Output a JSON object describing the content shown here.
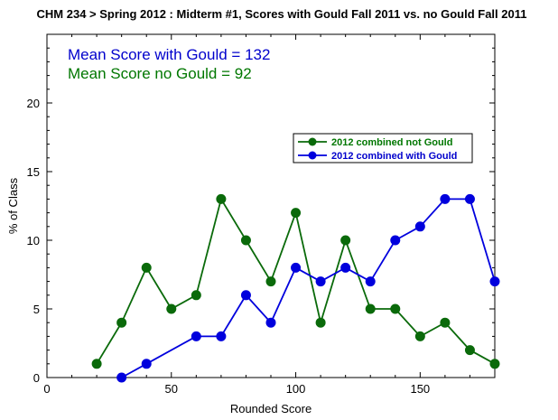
{
  "chart_data": {
    "type": "line",
    "title": "CHM 234 > Spring 2012 : Midterm #1, Scores with Gould Fall 2011 vs. no Gould Fall 2011",
    "xlabel": "Rounded Score",
    "ylabel": "% of Class",
    "xlim": [
      0,
      180
    ],
    "ylim": [
      0,
      25
    ],
    "xticks": [
      0,
      50,
      100,
      150
    ],
    "yticks": [
      0,
      5,
      10,
      15,
      20
    ],
    "grid": false,
    "legend_position": "center-right",
    "annotations": [
      {
        "text": "Mean Score with Gould = 132",
        "color": "#0000cc"
      },
      {
        "text": "Mean Score no Gould = 92",
        "color": "#007700"
      }
    ],
    "series": [
      {
        "name": "2012 combined not Gould",
        "color": "#0a6a0a",
        "text_color": "#007700",
        "x": [
          20,
          30,
          40,
          50,
          60,
          70,
          80,
          90,
          100,
          110,
          120,
          130,
          140,
          150,
          160,
          170,
          180
        ],
        "y": [
          1,
          4,
          8,
          5,
          6,
          13,
          10,
          7,
          12,
          4,
          10,
          5,
          5,
          3,
          4,
          2,
          1
        ]
      },
      {
        "name": "2012 combined with Gould",
        "color": "#0000dd",
        "text_color": "#0000cc",
        "x": [
          30,
          40,
          60,
          70,
          80,
          90,
          100,
          110,
          120,
          130,
          140,
          150,
          160,
          170,
          180
        ],
        "y": [
          0,
          1,
          3,
          3,
          6,
          4,
          8,
          7,
          8,
          7,
          10,
          11,
          13,
          13,
          7
        ]
      }
    ]
  }
}
